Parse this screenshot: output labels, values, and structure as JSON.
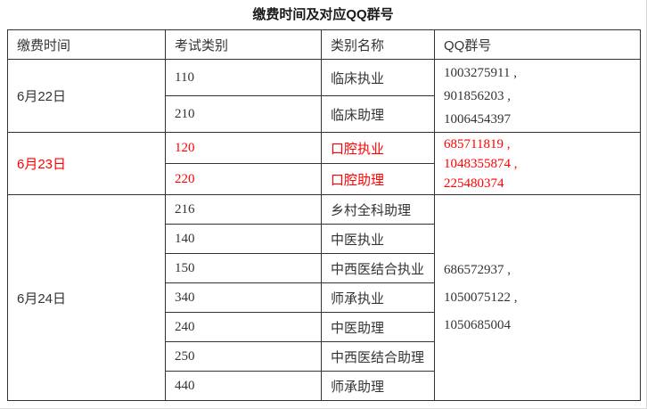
{
  "title": "缴费时间及对应QQ群号",
  "colors": {
    "accent_red": "#ff0000",
    "table_border": "#333333",
    "text": "#333333",
    "page_edge": "#d9d9d9"
  },
  "table": {
    "headers": [
      "缴费时间",
      "考试类别",
      "类别名称",
      "QQ群号"
    ],
    "groups": [
      {
        "date": "6月22日",
        "emphasis": "normal",
        "rows": [
          {
            "code": "110",
            "name": "临床执业"
          },
          {
            "code": "210",
            "name": "临床助理"
          }
        ],
        "qq": "1003275911 ,\n901856203 ,\n1006454397"
      },
      {
        "date": "6月23日",
        "emphasis": "red",
        "rows": [
          {
            "code": "120",
            "name": "口腔执业"
          },
          {
            "code": "220",
            "name": "口腔助理"
          }
        ],
        "qq": "685711819 ,\n1048355874 ,\n225480374"
      },
      {
        "date": "6月24日",
        "emphasis": "normal",
        "rows": [
          {
            "code": "216",
            "name": "乡村全科助理"
          },
          {
            "code": "140",
            "name": "中医执业"
          },
          {
            "code": "150",
            "name": "中西医结合执业"
          },
          {
            "code": "340",
            "name": "师承执业"
          },
          {
            "code": "240",
            "name": "中医助理"
          },
          {
            "code": "250",
            "name": "中西医结合助理"
          },
          {
            "code": "440",
            "name": "师承助理"
          }
        ],
        "qq": "686572937 ,\n1050075122 ,\n1050685004"
      }
    ]
  }
}
